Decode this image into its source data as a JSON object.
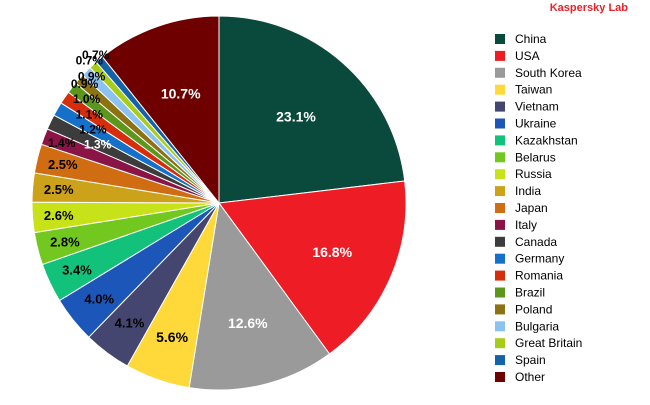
{
  "brand": "Kaspersky Lab",
  "chart_data": {
    "type": "pie",
    "title": "",
    "start_angle_deg": 0,
    "direction": "clockwise",
    "legend_position": "right",
    "slices": [
      {
        "name": "China",
        "value": 23.1,
        "label": "23.1%",
        "color": "#0a4a3c",
        "label_color": "#ffffff"
      },
      {
        "name": "USA",
        "value": 16.8,
        "label": "16.8%",
        "color": "#ee1c24",
        "label_color": "#ffffff"
      },
      {
        "name": "South Korea",
        "value": 12.6,
        "label": "12.6%",
        "color": "#9a9a9a",
        "label_color": "#ffffff"
      },
      {
        "name": "Taiwan",
        "value": 5.6,
        "label": "5.6%",
        "color": "#ffd83a",
        "label_color": "#000000"
      },
      {
        "name": "Vietnam",
        "value": 4.1,
        "label": "4.1%",
        "color": "#444670",
        "label_color": "#000000"
      },
      {
        "name": "Ukraine",
        "value": 4.0,
        "label": "4.0%",
        "color": "#1c56b8",
        "label_color": "#000000"
      },
      {
        "name": "Kazakhstan",
        "value": 3.4,
        "label": "3.4%",
        "color": "#12c27a",
        "label_color": "#000000"
      },
      {
        "name": "Belarus",
        "value": 2.8,
        "label": "2.8%",
        "color": "#72c81e",
        "label_color": "#000000"
      },
      {
        "name": "Russia",
        "value": 2.6,
        "label": "2.6%",
        "color": "#c8e21a",
        "label_color": "#000000"
      },
      {
        "name": "India",
        "value": 2.5,
        "label": "2.5%",
        "color": "#cca21a",
        "label_color": "#000000"
      },
      {
        "name": "Japan",
        "value": 2.5,
        "label": "2.5%",
        "color": "#d06c12",
        "label_color": "#000000"
      },
      {
        "name": "Italy",
        "value": 1.4,
        "label": "1.4%",
        "color": "#8a1446",
        "label_color": "#000000"
      },
      {
        "name": "Canada",
        "value": 1.3,
        "label": "1.3%",
        "color": "#3c3c3c",
        "label_color": "#ffffff"
      },
      {
        "name": "Germany",
        "value": 1.2,
        "label": "1.2%",
        "color": "#1470c8",
        "label_color": "#000000"
      },
      {
        "name": "Romania",
        "value": 1.1,
        "label": "1.1%",
        "color": "#d62e0c",
        "label_color": "#000000"
      },
      {
        "name": "Brazil",
        "value": 1.0,
        "label": "1.0%",
        "color": "#5c961c",
        "label_color": "#000000"
      },
      {
        "name": "Poland",
        "value": 0.9,
        "label": "0.9%",
        "color": "#8c7212",
        "label_color": "#000000"
      },
      {
        "name": "Bulgaria",
        "value": 0.9,
        "label": "0.9%",
        "color": "#8cc2f0",
        "label_color": "#000000"
      },
      {
        "name": "Great Britain",
        "value": 0.7,
        "label": "0.7%",
        "color": "#a8cc1a",
        "label_color": "#000000"
      },
      {
        "name": "Spain",
        "value": 0.7,
        "label": "0.7%",
        "color": "#1462a8",
        "label_color": "#000000"
      },
      {
        "name": "Other",
        "value": 10.7,
        "label": "10.7%",
        "color": "#6e0000",
        "label_color": "#ffffff"
      }
    ]
  }
}
